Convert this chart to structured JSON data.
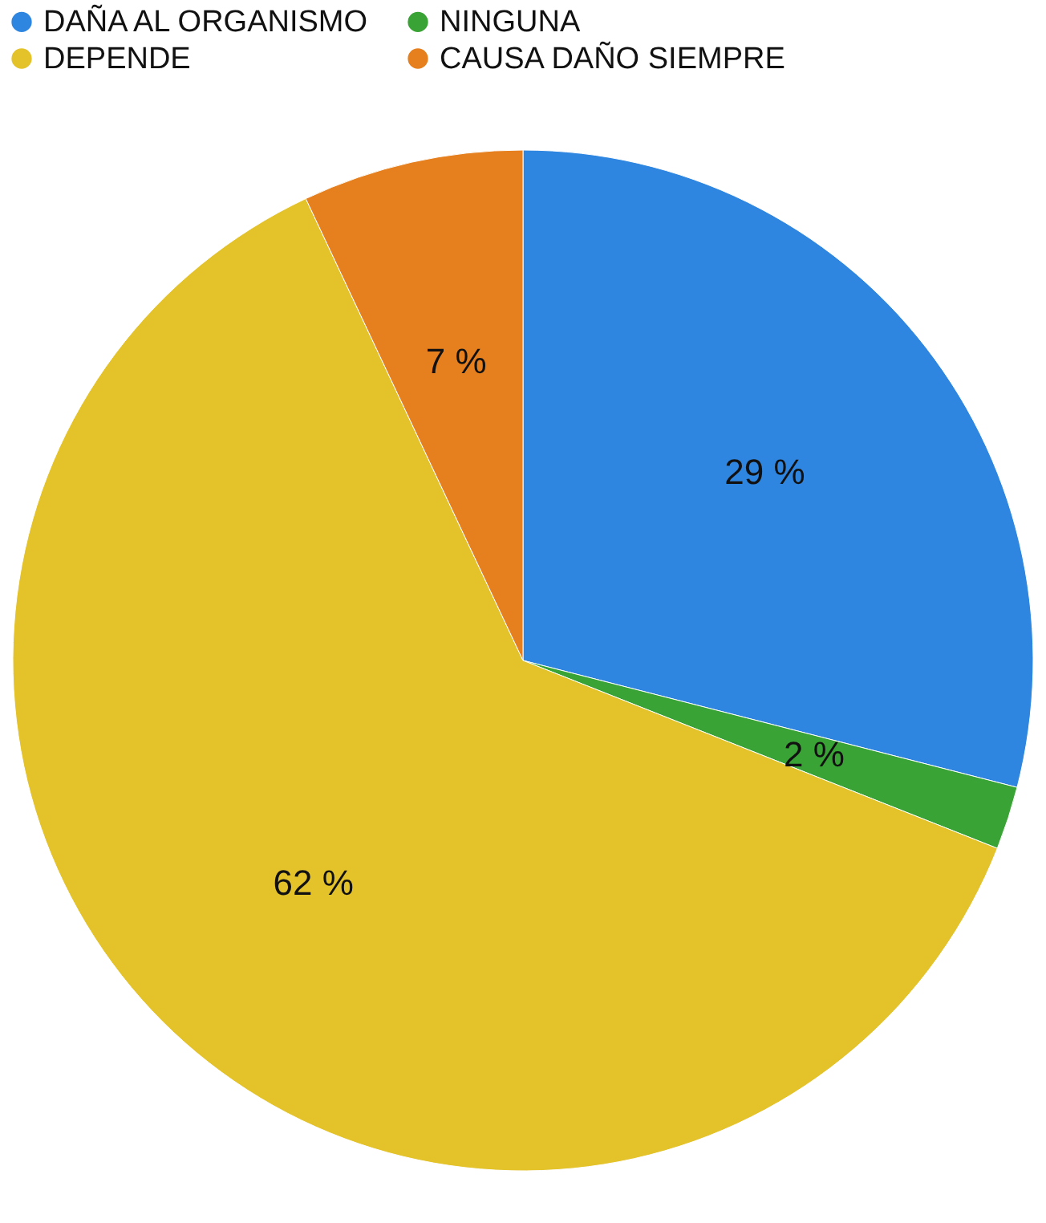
{
  "chart_data": {
    "type": "pie",
    "categories": [
      "DAÑA AL ORGANISMO",
      "NINGUNA",
      "DEPENDE",
      "CAUSA DAÑO SIEMPRE"
    ],
    "values": [
      29,
      2,
      62,
      7
    ],
    "colors": [
      "#2f86e0",
      "#3aa335",
      "#e3c22a",
      "#e6801e"
    ],
    "value_labels": [
      "29 %",
      "2 %",
      "62 %",
      "7 %"
    ],
    "legend": "top"
  }
}
